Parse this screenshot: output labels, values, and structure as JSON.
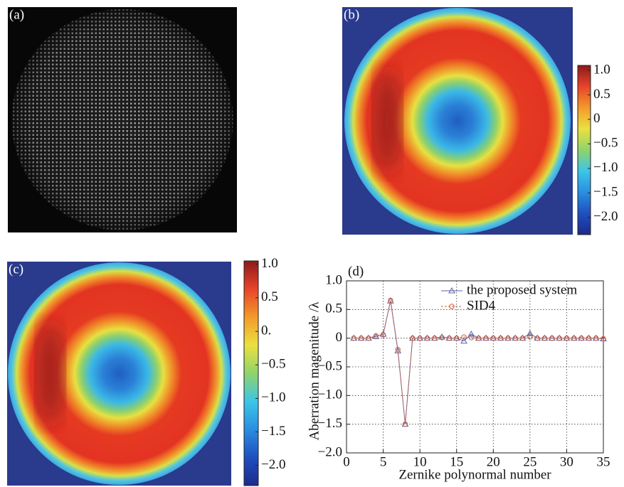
{
  "chart_data": [
    {
      "type": "image",
      "title": "(a)"
    },
    {
      "type": "heatmap",
      "title": "(b)",
      "colormap": "jet",
      "clim": [
        -2.35,
        1.1
      ],
      "cticks": [
        {
          "value": 1.0,
          "label": "1.0"
        },
        0.5,
        0,
        {
          "value": -0.5,
          "label": "−0.5"
        },
        {
          "value": -1.0,
          "label": "−1.0"
        },
        {
          "value": -1.5,
          "label": "−1.5"
        },
        {
          "value": -2.0,
          "label": "−2.0"
        }
      ]
    },
    {
      "type": "heatmap",
      "title": "(c)",
      "colormap": "jet",
      "clim": [
        -2.3,
        1.05
      ],
      "cticks": [
        {
          "value": 1.0,
          "label": "1.0"
        },
        0.5,
        {
          "value": 0,
          "label": "0."
        },
        {
          "value": -0.5,
          "label": "−0.5"
        },
        {
          "value": -1.0,
          "label": "−1.0"
        },
        {
          "value": -1.5,
          "label": "−1.5"
        },
        {
          "value": -2.0,
          "label": "−2.0"
        }
      ]
    },
    {
      "type": "line",
      "title": "(d)",
      "xlabel": "Zernike polynormal number",
      "ylabel": "Aberration magenitude /λ",
      "x": [
        1,
        2,
        3,
        4,
        5,
        6,
        7,
        8,
        9,
        10,
        11,
        12,
        13,
        14,
        15,
        16,
        17,
        18,
        19,
        20,
        21,
        22,
        23,
        24,
        25,
        26,
        27,
        28,
        29,
        30,
        31,
        32,
        33,
        34,
        35
      ],
      "series": [
        {
          "name": "the proposed system",
          "color": "#5a64a8",
          "marker": "triangle",
          "dash": "solid",
          "values": [
            0,
            0,
            0,
            0.03,
            0.07,
            0.65,
            -0.22,
            -1.5,
            0,
            0,
            0,
            0,
            0.02,
            0,
            0,
            -0.05,
            0.07,
            0,
            0,
            0,
            0,
            0,
            0,
            0,
            0.08,
            0,
            0,
            0,
            0,
            0,
            0,
            0,
            0,
            0,
            -0.01
          ]
        },
        {
          "name": "SID4",
          "color": "#d0603e",
          "marker": "circle",
          "dash": "dashed",
          "values": [
            0,
            0,
            0,
            0.04,
            0.06,
            0.66,
            -0.2,
            -1.5,
            0,
            0,
            0,
            0,
            0.01,
            0,
            0,
            0.02,
            0.01,
            0,
            0,
            0,
            0,
            0,
            0,
            0,
            0.02,
            0,
            0,
            0,
            0,
            0,
            0,
            0,
            0,
            0,
            -0.01
          ]
        }
      ],
      "xlim": [
        0,
        35
      ],
      "xticks": [
        0,
        5,
        10,
        15,
        20,
        25,
        30,
        35
      ],
      "ylim": [
        -2.0,
        1.0
      ],
      "yticks": [
        {
          "value": 1.0,
          "label": "1.0"
        },
        0.5,
        0,
        {
          "value": -0.5,
          "label": "−0.5"
        },
        {
          "value": -1.0,
          "label": "−1.0"
        },
        {
          "value": -1.5,
          "label": "−1.5"
        },
        {
          "value": -2.0,
          "label": "−2.0"
        }
      ],
      "grid": true,
      "legend": "upper right"
    }
  ]
}
